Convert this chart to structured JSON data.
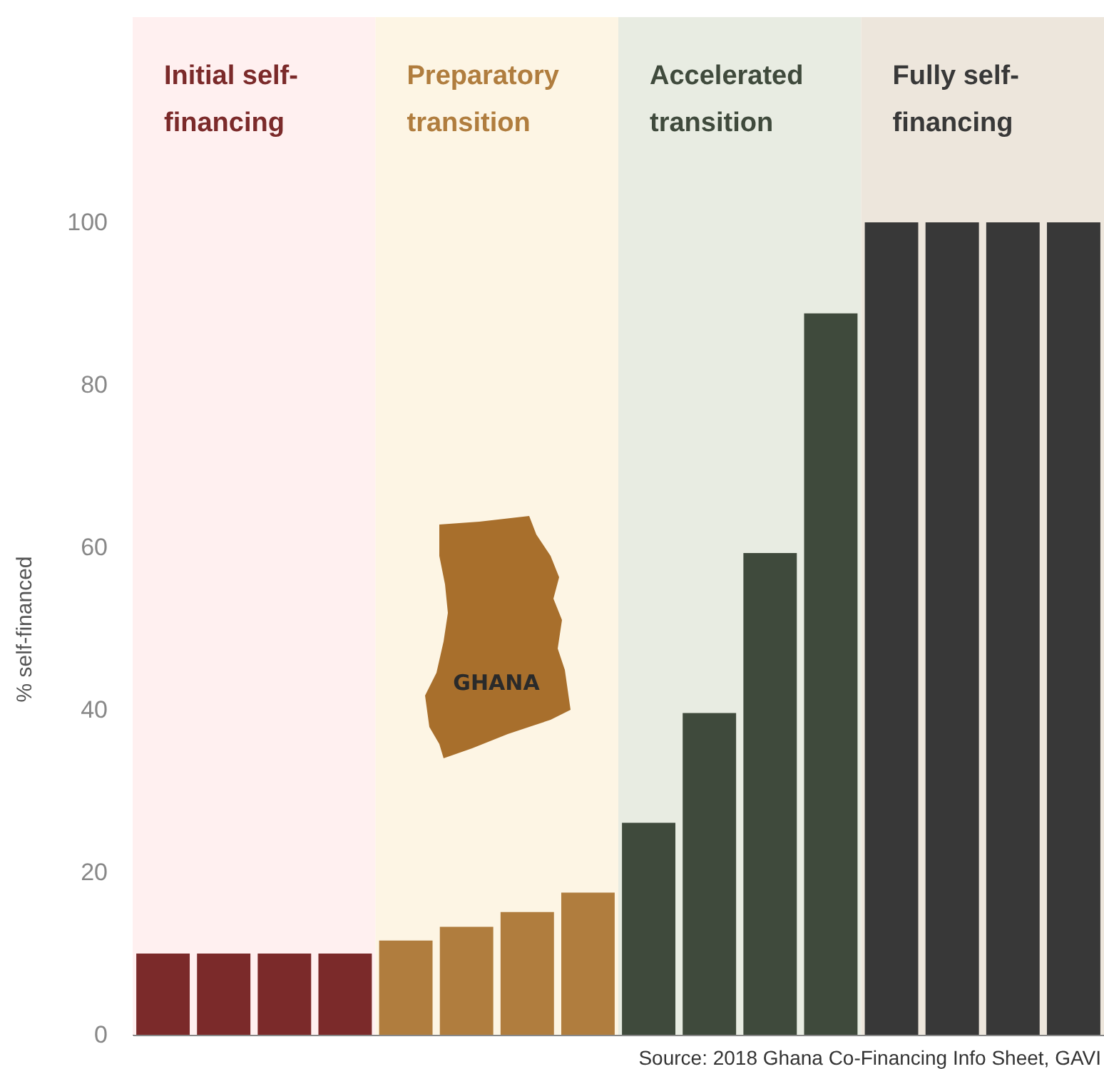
{
  "chart_data": {
    "type": "bar",
    "ylabel": "% self-financed",
    "categories": [
      null,
      null,
      null,
      null,
      null,
      null,
      null,
      null,
      null,
      null,
      null,
      null,
      null,
      null,
      null,
      null
    ],
    "values": [
      10,
      10,
      10,
      10,
      11.6,
      13.3,
      15.1,
      17.5,
      26.1,
      39.6,
      59.3,
      88.8,
      100,
      100,
      100,
      100
    ],
    "colors": [
      "#7b2a2a",
      "#7b2a2a",
      "#7b2a2a",
      "#7b2a2a",
      "#b07d3e",
      "#b07d3e",
      "#b07d3e",
      "#b07d3e",
      "#3f4a3c",
      "#3f4a3c",
      "#3f4a3c",
      "#3f4a3c",
      "#383838",
      "#383838",
      "#383838",
      "#383838"
    ],
    "ylim": [
      0,
      100
    ],
    "yticks": [
      0,
      20,
      40,
      60,
      80,
      100
    ],
    "grid": false,
    "tick_labels": "y",
    "annotations": [
      "Initial self-\nfinancing",
      "Preparatory\ntransition",
      "Accelerated\ntransition",
      "Fully self-\nfinancing",
      "GHANA",
      "Source: 2018 Ghana Co-Financing Info Sheet, GAVI"
    ]
  }
}
